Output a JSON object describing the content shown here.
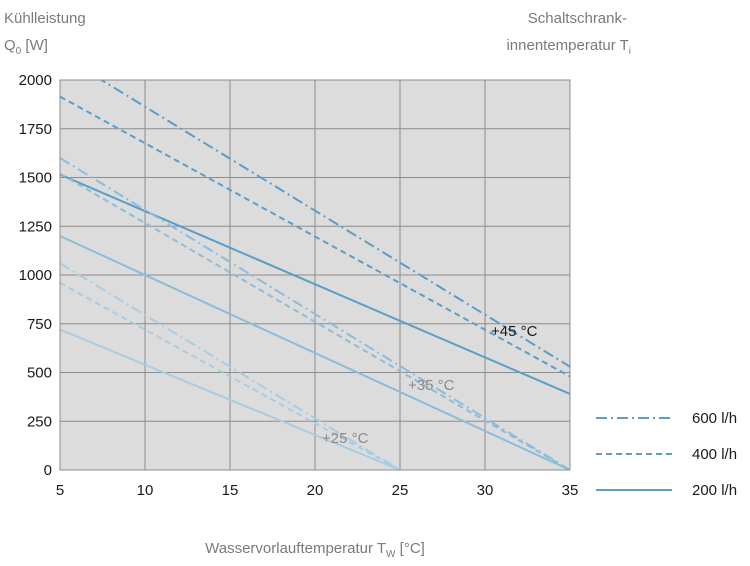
{
  "chart_data": {
    "type": "line",
    "ylabel_line1": "Kühlleistung",
    "ylabel_line2_main": "Q",
    "ylabel_line2_sub": "0",
    "ylabel_line2_unit": " [W]",
    "legend_title_line1": "Schaltschrank-",
    "legend_title_line2_main": "innentemperatur T",
    "legend_title_line2_sub": "i",
    "xlabel_main": "Wasservorlauftemperatur T",
    "xlabel_sub": "W",
    "xlabel_unit": " [°C]",
    "xlim": [
      5,
      35
    ],
    "ylim": [
      0,
      2000
    ],
    "x_ticks": [
      5,
      10,
      15,
      20,
      25,
      30,
      35
    ],
    "y_ticks": [
      0,
      250,
      500,
      750,
      1000,
      1250,
      1500,
      1750,
      2000
    ],
    "grid": true,
    "legend": [
      {
        "label": "600 l/h",
        "style": "dashdot"
      },
      {
        "label": "400 l/h",
        "style": "dashed"
      },
      {
        "label": "200 l/h",
        "style": "solid"
      }
    ],
    "groups": [
      {
        "label": "+45 °C",
        "color": "#5b9dc9",
        "series": [
          {
            "flow": "600 l/h",
            "style": "dashdot",
            "x": [
              5,
              35
            ],
            "y": [
              2130,
              530
            ]
          },
          {
            "flow": "400 l/h",
            "style": "dashed",
            "x": [
              5,
              35
            ],
            "y": [
              1915,
              480
            ]
          },
          {
            "flow": "200 l/h",
            "style": "solid",
            "x": [
              5,
              35
            ],
            "y": [
              1515,
              390
            ]
          }
        ]
      },
      {
        "label": "+35 °C",
        "color": "#8dbcdb",
        "series": [
          {
            "flow": "600 l/h",
            "style": "dashdot",
            "x": [
              5,
              35
            ],
            "y": [
              1600,
              0
            ]
          },
          {
            "flow": "400 l/h",
            "style": "dashed",
            "x": [
              5,
              35
            ],
            "y": [
              1520,
              0
            ]
          },
          {
            "flow": "200 l/h",
            "style": "solid",
            "x": [
              5,
              35
            ],
            "y": [
              1200,
              0
            ]
          }
        ]
      },
      {
        "label": "+25 °C",
        "color": "#a9cce3",
        "series": [
          {
            "flow": "600 l/h",
            "style": "dashdot",
            "x": [
              5,
              25
            ],
            "y": [
              1060,
              0
            ]
          },
          {
            "flow": "400 l/h",
            "style": "dashed",
            "x": [
              5,
              25
            ],
            "y": [
              960,
              0
            ]
          },
          {
            "flow": "200 l/h",
            "style": "solid",
            "x": [
              5,
              25
            ],
            "y": [
              720,
              0
            ]
          }
        ]
      }
    ]
  },
  "colors": {
    "plot_background": "#dcdcdc",
    "grid": "#8c8c8c",
    "legend_line": "#5b9dc9",
    "annotation_45": "#1a1a1a",
    "annotation_35": "#8a8a8a",
    "annotation_25": "#8a8a8a"
  }
}
